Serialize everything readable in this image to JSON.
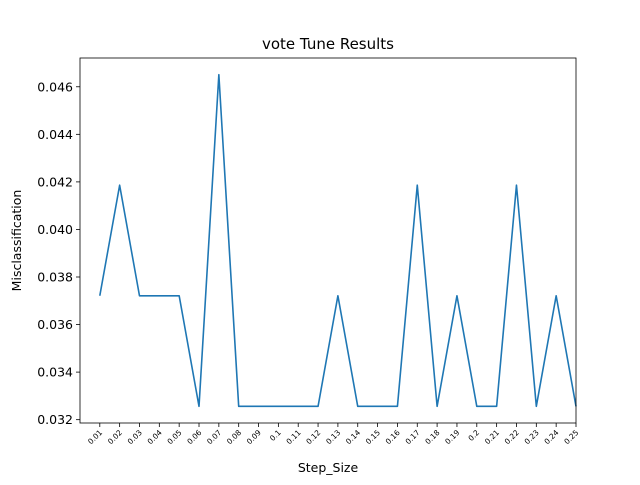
{
  "chart_data": {
    "type": "line",
    "title": "vote Tune Results",
    "xlabel": "Step_Size",
    "ylabel": "Misclassification",
    "x": [
      "0.01",
      "0.02",
      "0.03",
      "0.04",
      "0.05",
      "0.06",
      "0.07",
      "0.08",
      "0.09",
      "0.1",
      "0.11",
      "0.12",
      "0.13",
      "0.14",
      "0.15",
      "0.16",
      "0.17",
      "0.18",
      "0.19",
      "0.2",
      "0.21",
      "0.22",
      "0.23",
      "0.24",
      "0.25"
    ],
    "series": [
      {
        "values": [
          0.03721,
          0.04186,
          0.03721,
          0.03721,
          0.03721,
          0.03256,
          0.04651,
          0.03256,
          0.03256,
          0.03256,
          0.03256,
          0.03256,
          0.03721,
          0.03256,
          0.03256,
          0.03256,
          0.04186,
          0.03256,
          0.03721,
          0.03256,
          0.03256,
          0.04186,
          0.03256,
          0.03721,
          0.03256
        ],
        "color": "#1f77b4"
      }
    ],
    "yticks": [
      "0.032",
      "0.034",
      "0.036",
      "0.038",
      "0.040",
      "0.042",
      "0.044",
      "0.046"
    ],
    "ylim": [
      0.03186,
      0.04721
    ],
    "grid": false
  }
}
